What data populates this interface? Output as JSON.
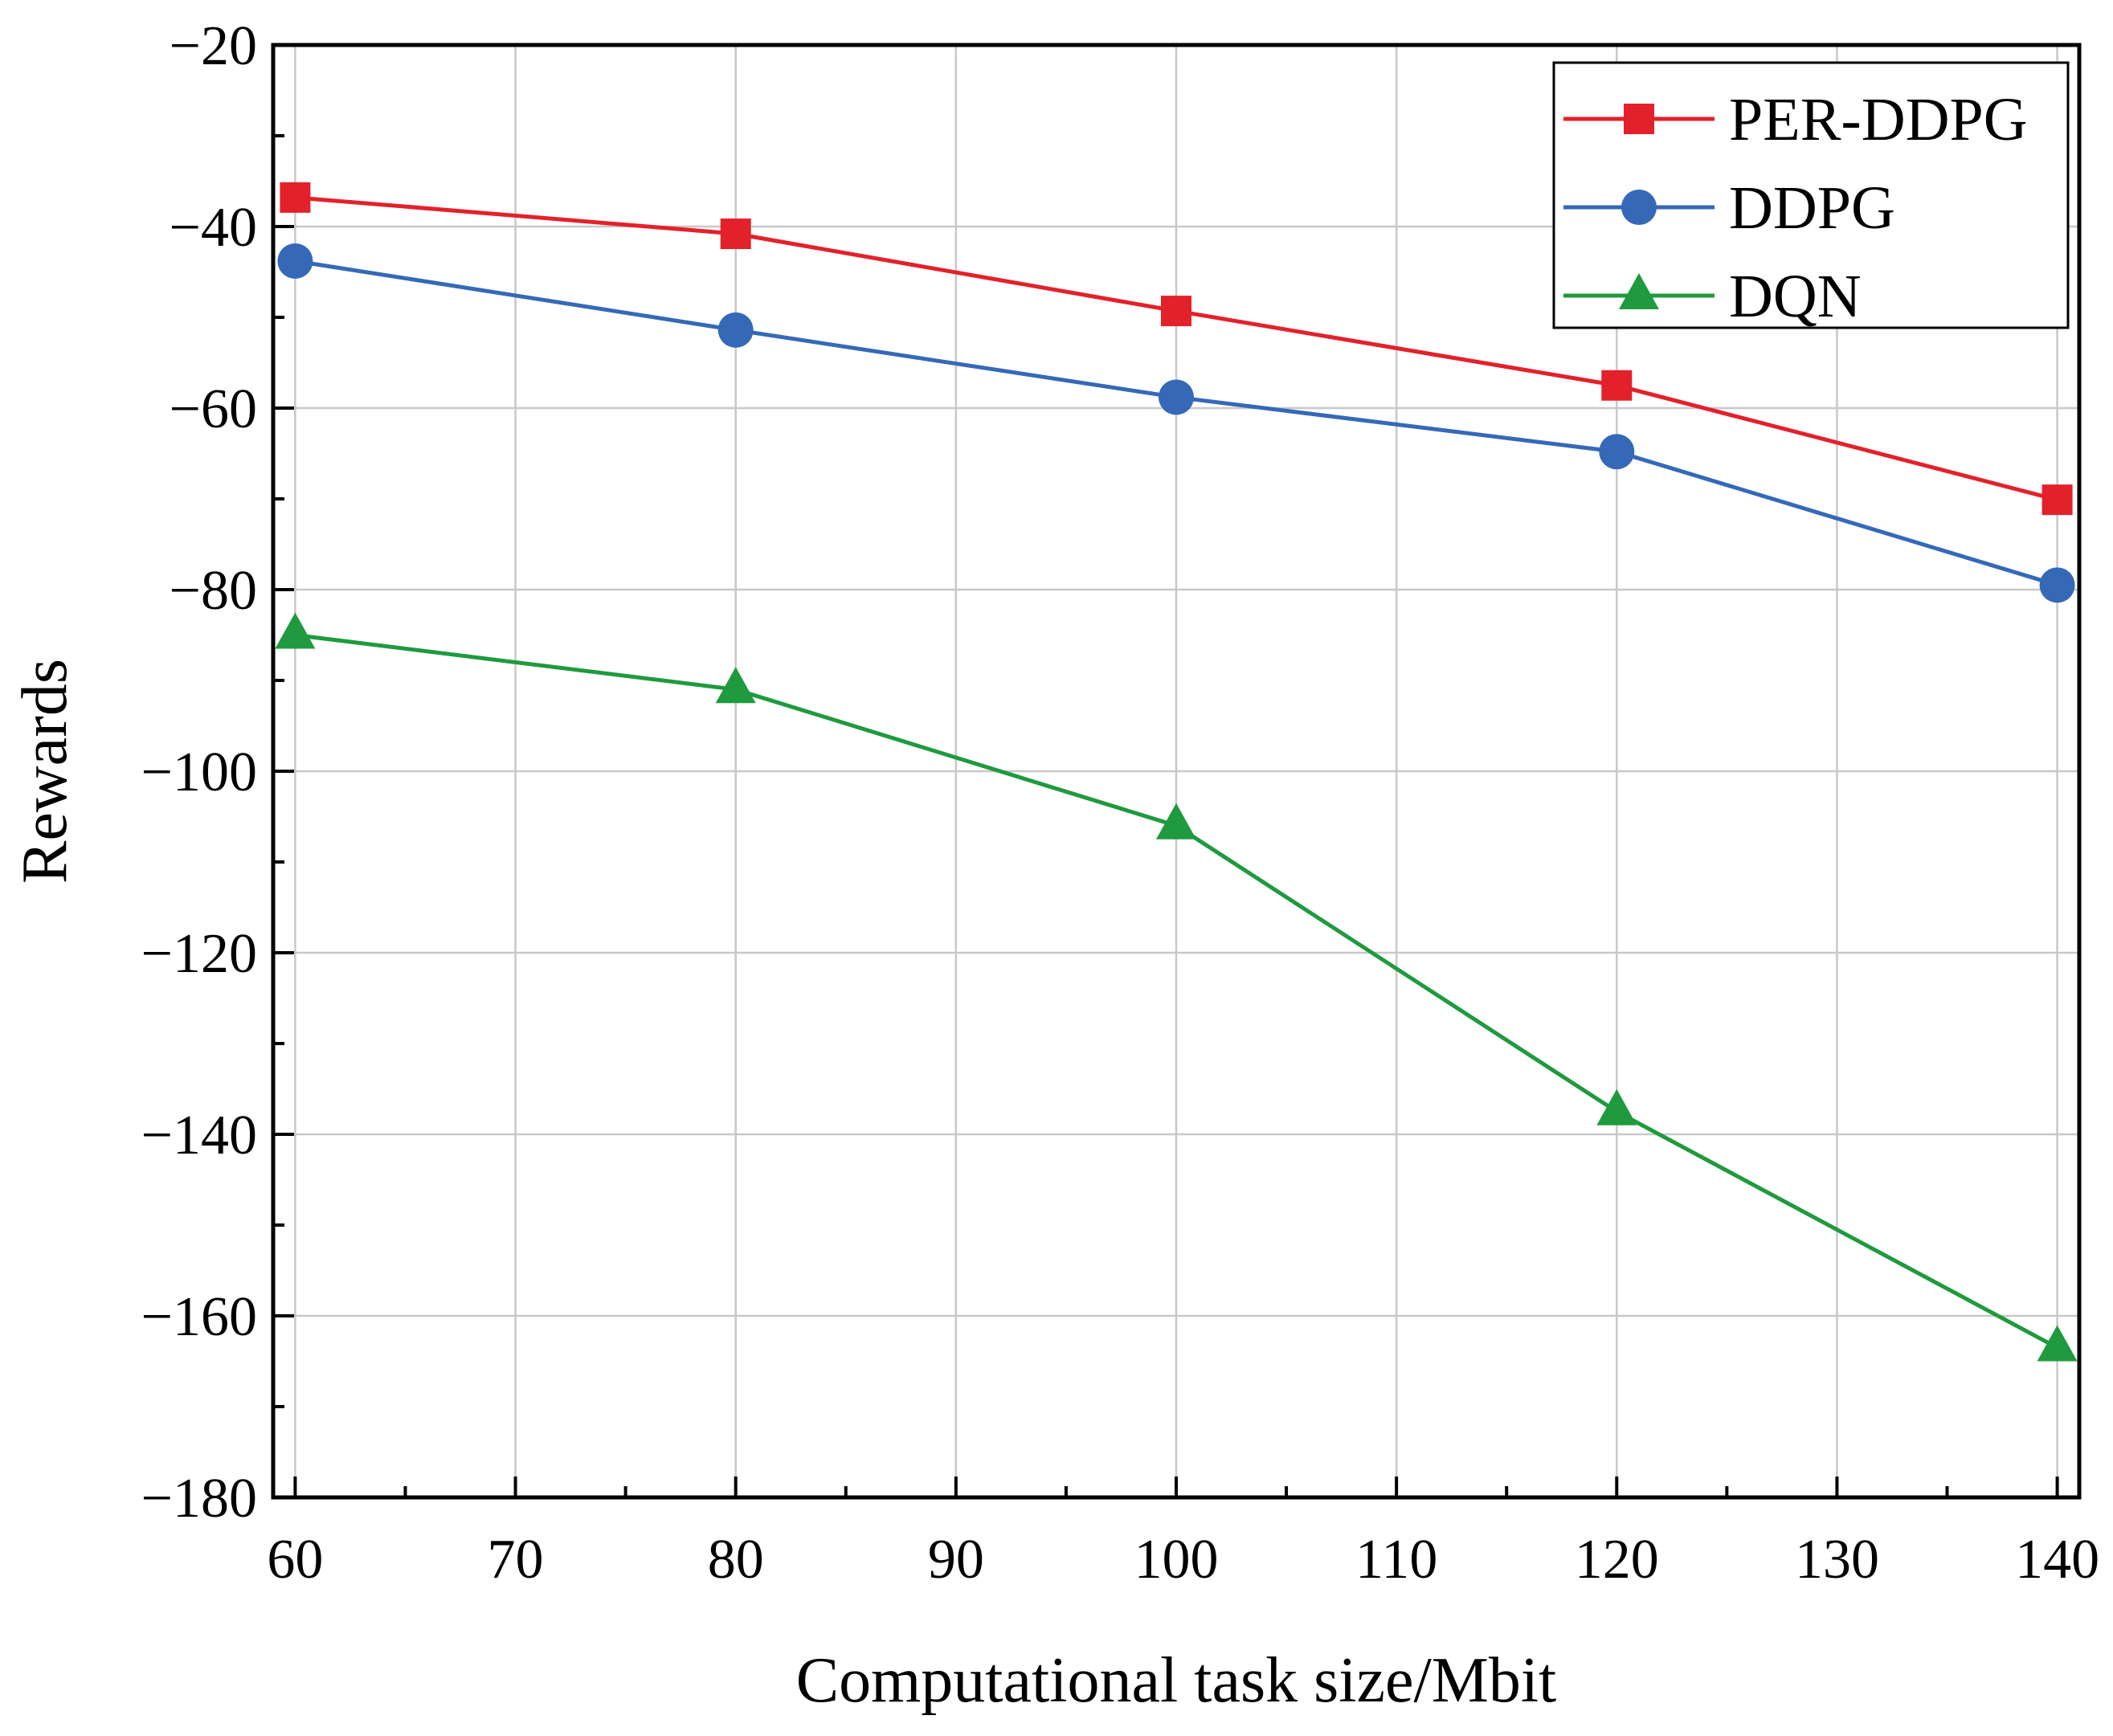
{
  "chart_data": {
    "type": "line",
    "title": "",
    "xlabel": "Computational task size/Mbit",
    "ylabel": "Rewards",
    "xlim": [
      59,
      141
    ],
    "ylim": [
      -180,
      -20
    ],
    "xticks": [
      60,
      70,
      80,
      90,
      100,
      110,
      120,
      130,
      140
    ],
    "yticks": [
      -20,
      -40,
      -60,
      -80,
      -100,
      -120,
      -140,
      -160,
      -180
    ],
    "xtick_labels": [
      "60",
      "70",
      "80",
      "90",
      "100",
      "110",
      "120",
      "130",
      "140"
    ],
    "ytick_labels": [
      "−20",
      "−40",
      "−60",
      "−80",
      "−100",
      "−120",
      "−140",
      "−160",
      "−180"
    ],
    "grid": true,
    "legend_position": "top-right",
    "x": [
      60,
      80,
      100,
      120,
      140
    ],
    "series": [
      {
        "name": "PER-DDPG",
        "values": [
          -36.8,
          -40.8,
          -49.3,
          -57.5,
          -70.1
        ],
        "color": "#e3212b",
        "marker": "square"
      },
      {
        "name": "DDPG",
        "values": [
          -43.8,
          -51.4,
          -58.8,
          -64.8,
          -79.5
        ],
        "color": "#3569b8",
        "marker": "circle"
      },
      {
        "name": "DQN",
        "values": [
          -85.0,
          -91.0,
          -106.0,
          -137.5,
          -163.5
        ],
        "color": "#1f9a3e",
        "marker": "triangle"
      }
    ]
  }
}
